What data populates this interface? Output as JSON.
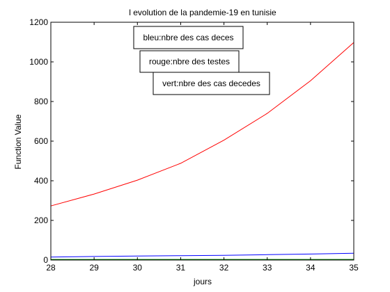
{
  "chart_data": {
    "type": "line",
    "title": "l evolution de la pandemie-19 en tunisie",
    "xlabel": "jours",
    "ylabel": "Function Value",
    "xlim": [
      28,
      35
    ],
    "ylim": [
      0,
      1200
    ],
    "xticks": [
      28,
      29,
      30,
      31,
      32,
      33,
      34,
      35
    ],
    "yticks": [
      0,
      200,
      400,
      600,
      800,
      1000,
      1200
    ],
    "grid": false,
    "annotations": [
      "bleu:nbre des cas deces",
      "rouge:nbre des testes",
      "vert:nbre des cas decedes"
    ],
    "series": [
      {
        "color": "#ff0000",
        "x": [
          28,
          29,
          30,
          31,
          32,
          33,
          34,
          35
        ],
        "y": [
          273,
          333,
          403,
          488,
          605,
          740,
          905,
          1098
        ]
      },
      {
        "color": "#0000ff",
        "x": [
          28,
          29,
          30,
          31,
          32,
          33,
          34,
          35
        ],
        "y": [
          15,
          18,
          20,
          22,
          24,
          27,
          30,
          34
        ]
      },
      {
        "color": "#008000",
        "x": [
          28,
          29,
          30,
          31,
          32,
          33,
          34,
          35
        ],
        "y": [
          3,
          3,
          3,
          3,
          3,
          3,
          3,
          3
        ]
      }
    ]
  }
}
